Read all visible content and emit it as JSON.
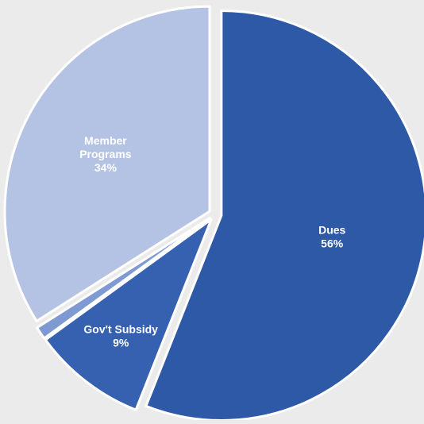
{
  "colors": {
    "background": "#ebebeb",
    "separator": "#ffffff"
  },
  "chart_data": {
    "type": "pie",
    "title": "",
    "legend": "none",
    "slices": [
      {
        "label_lines": [
          "Dues",
          "56%"
        ],
        "value": 56,
        "color": "#2e59a6",
        "text_color": "#ffffff",
        "exploded": true
      },
      {
        "label_lines": [
          "Gov't Subsidy",
          "9%"
        ],
        "value": 9,
        "color": "#3561b0",
        "text_color": "#ffffff",
        "exploded": true
      },
      {
        "label_lines": [],
        "value": 1,
        "color": "#7f9ad2",
        "text_color": "#ffffff",
        "exploded": true
      },
      {
        "label_lines": [
          "Member",
          "Programs",
          "34%"
        ],
        "value": 34,
        "color": "#b4c3e4",
        "text_color": "#263556",
        "exploded": true
      }
    ]
  }
}
